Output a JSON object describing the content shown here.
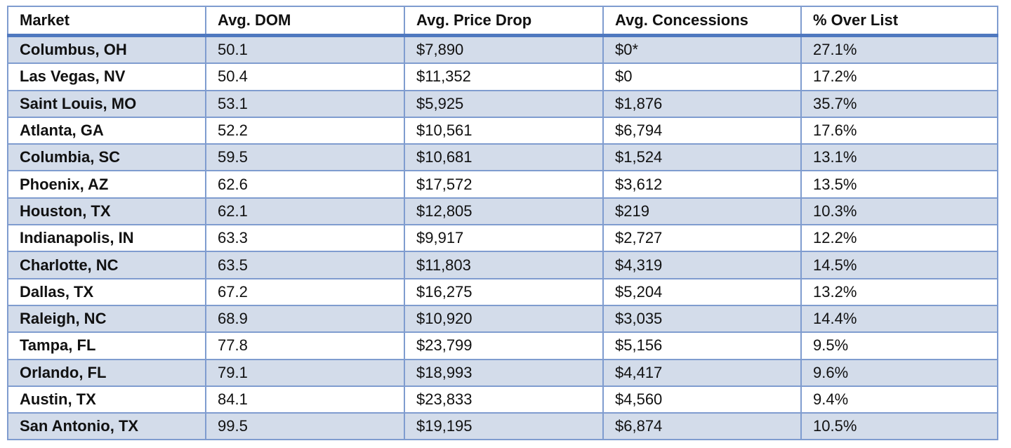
{
  "table": {
    "columns": [
      "Market",
      "Avg. DOM",
      "Avg. Price Drop",
      "Avg. Concessions",
      "% Over List"
    ],
    "rows": [
      [
        "Columbus, OH",
        "50.1",
        "$7,890",
        "$0*",
        "27.1%"
      ],
      [
        "Las Vegas, NV",
        "50.4",
        "$11,352",
        "$0",
        "17.2%"
      ],
      [
        "Saint Louis, MO",
        "53.1",
        "$5,925",
        "$1,876",
        "35.7%"
      ],
      [
        "Atlanta, GA",
        "52.2",
        "$10,561",
        "$6,794",
        "17.6%"
      ],
      [
        "Columbia, SC",
        "59.5",
        "$10,681",
        "$1,524",
        "13.1%"
      ],
      [
        "Phoenix, AZ",
        "62.6",
        "$17,572",
        "$3,612",
        "13.5%"
      ],
      [
        "Houston, TX",
        "62.1",
        "$12,805",
        "$219",
        "10.3%"
      ],
      [
        "Indianapolis, IN",
        "63.3",
        "$9,917",
        "$2,727",
        "12.2%"
      ],
      [
        "Charlotte, NC",
        "63.5",
        "$11,803",
        "$4,319",
        "14.5%"
      ],
      [
        "Dallas, TX",
        "67.2",
        "$16,275",
        "$5,204",
        "13.2%"
      ],
      [
        "Raleigh, NC",
        "68.9",
        "$10,920",
        "$3,035",
        "14.4%"
      ],
      [
        "Tampa, FL",
        "77.8",
        "$23,799",
        "$5,156",
        "9.5%"
      ],
      [
        "Orlando, FL",
        "79.1",
        "$18,993",
        "$4,417",
        "9.6%"
      ],
      [
        "Austin, TX",
        "84.1",
        "$23,833",
        "$4,560",
        "9.4%"
      ],
      [
        "San Antonio, TX",
        "99.5",
        "$19,195",
        "$6,874",
        "10.5%"
      ]
    ]
  }
}
